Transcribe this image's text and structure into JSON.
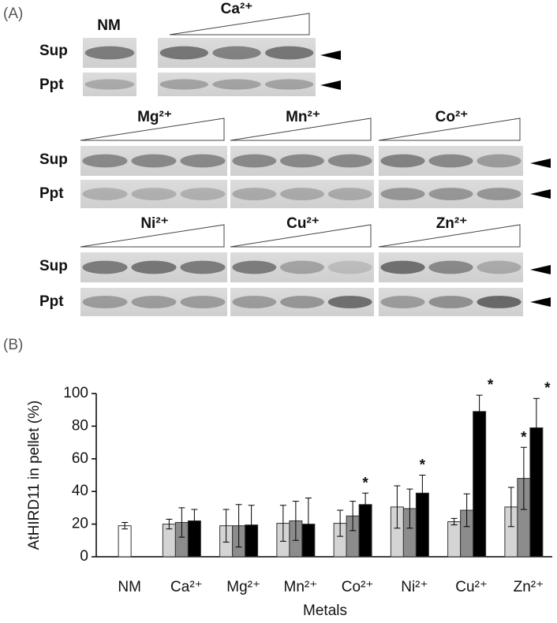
{
  "panel_a": {
    "label": "(A)",
    "gels": [
      {
        "lane_labels": [
          "NM",
          "Ca²⁺"
        ],
        "row_labels": [
          "Sup",
          "Ppt"
        ]
      },
      {
        "lane_labels": [
          "Mg²⁺",
          "Mn²⁺",
          "Co²⁺"
        ],
        "row_labels": [
          "Sup",
          "Ppt"
        ]
      },
      {
        "lane_labels": [
          "Ni²⁺",
          "Cu²⁺",
          "Zn²⁺"
        ],
        "row_labels": [
          "Sup",
          "Ppt"
        ]
      }
    ]
  },
  "chart_data": {
    "type": "bar",
    "panel_label": "(B)",
    "x_label": "Metals",
    "y_label": "AtHIRD11 in pellet (%)",
    "categories": [
      "NM",
      "Ca²⁺",
      "Mg²⁺",
      "Mn²⁺",
      "Co²⁺",
      "Ni²⁺",
      "Cu²⁺",
      "Zn²⁺"
    ],
    "series": [
      {
        "color": "#ffffff",
        "values": [
          19,
          null,
          null,
          null,
          null,
          null,
          null,
          null
        ],
        "errors": [
          2,
          null,
          null,
          null,
          null,
          null,
          null,
          null
        ]
      },
      {
        "color": "#d4d4d4",
        "values": [
          null,
          20,
          19,
          20.5,
          20.5,
          30.5,
          21.5,
          30.5
        ],
        "errors": [
          null,
          3,
          10,
          11,
          8,
          13,
          2,
          12
        ]
      },
      {
        "color": "#8c8c8c",
        "values": [
          null,
          21,
          19,
          22,
          25,
          29.5,
          28.5,
          48
        ],
        "errors": [
          null,
          9,
          13,
          12,
          9,
          12,
          10,
          19
        ],
        "markers": [
          null,
          null,
          null,
          null,
          null,
          null,
          null,
          "*"
        ]
      },
      {
        "color": "#000000",
        "values": [
          null,
          22,
          19.5,
          20,
          32,
          39,
          89,
          79
        ],
        "errors": [
          null,
          7,
          12,
          16,
          7,
          11,
          10,
          18
        ],
        "markers": [
          null,
          null,
          null,
          null,
          "*",
          "*",
          "*",
          "*"
        ]
      }
    ],
    "ylim": [
      0,
      100
    ],
    "yticks": [
      0,
      20,
      40,
      60,
      80,
      100
    ]
  }
}
